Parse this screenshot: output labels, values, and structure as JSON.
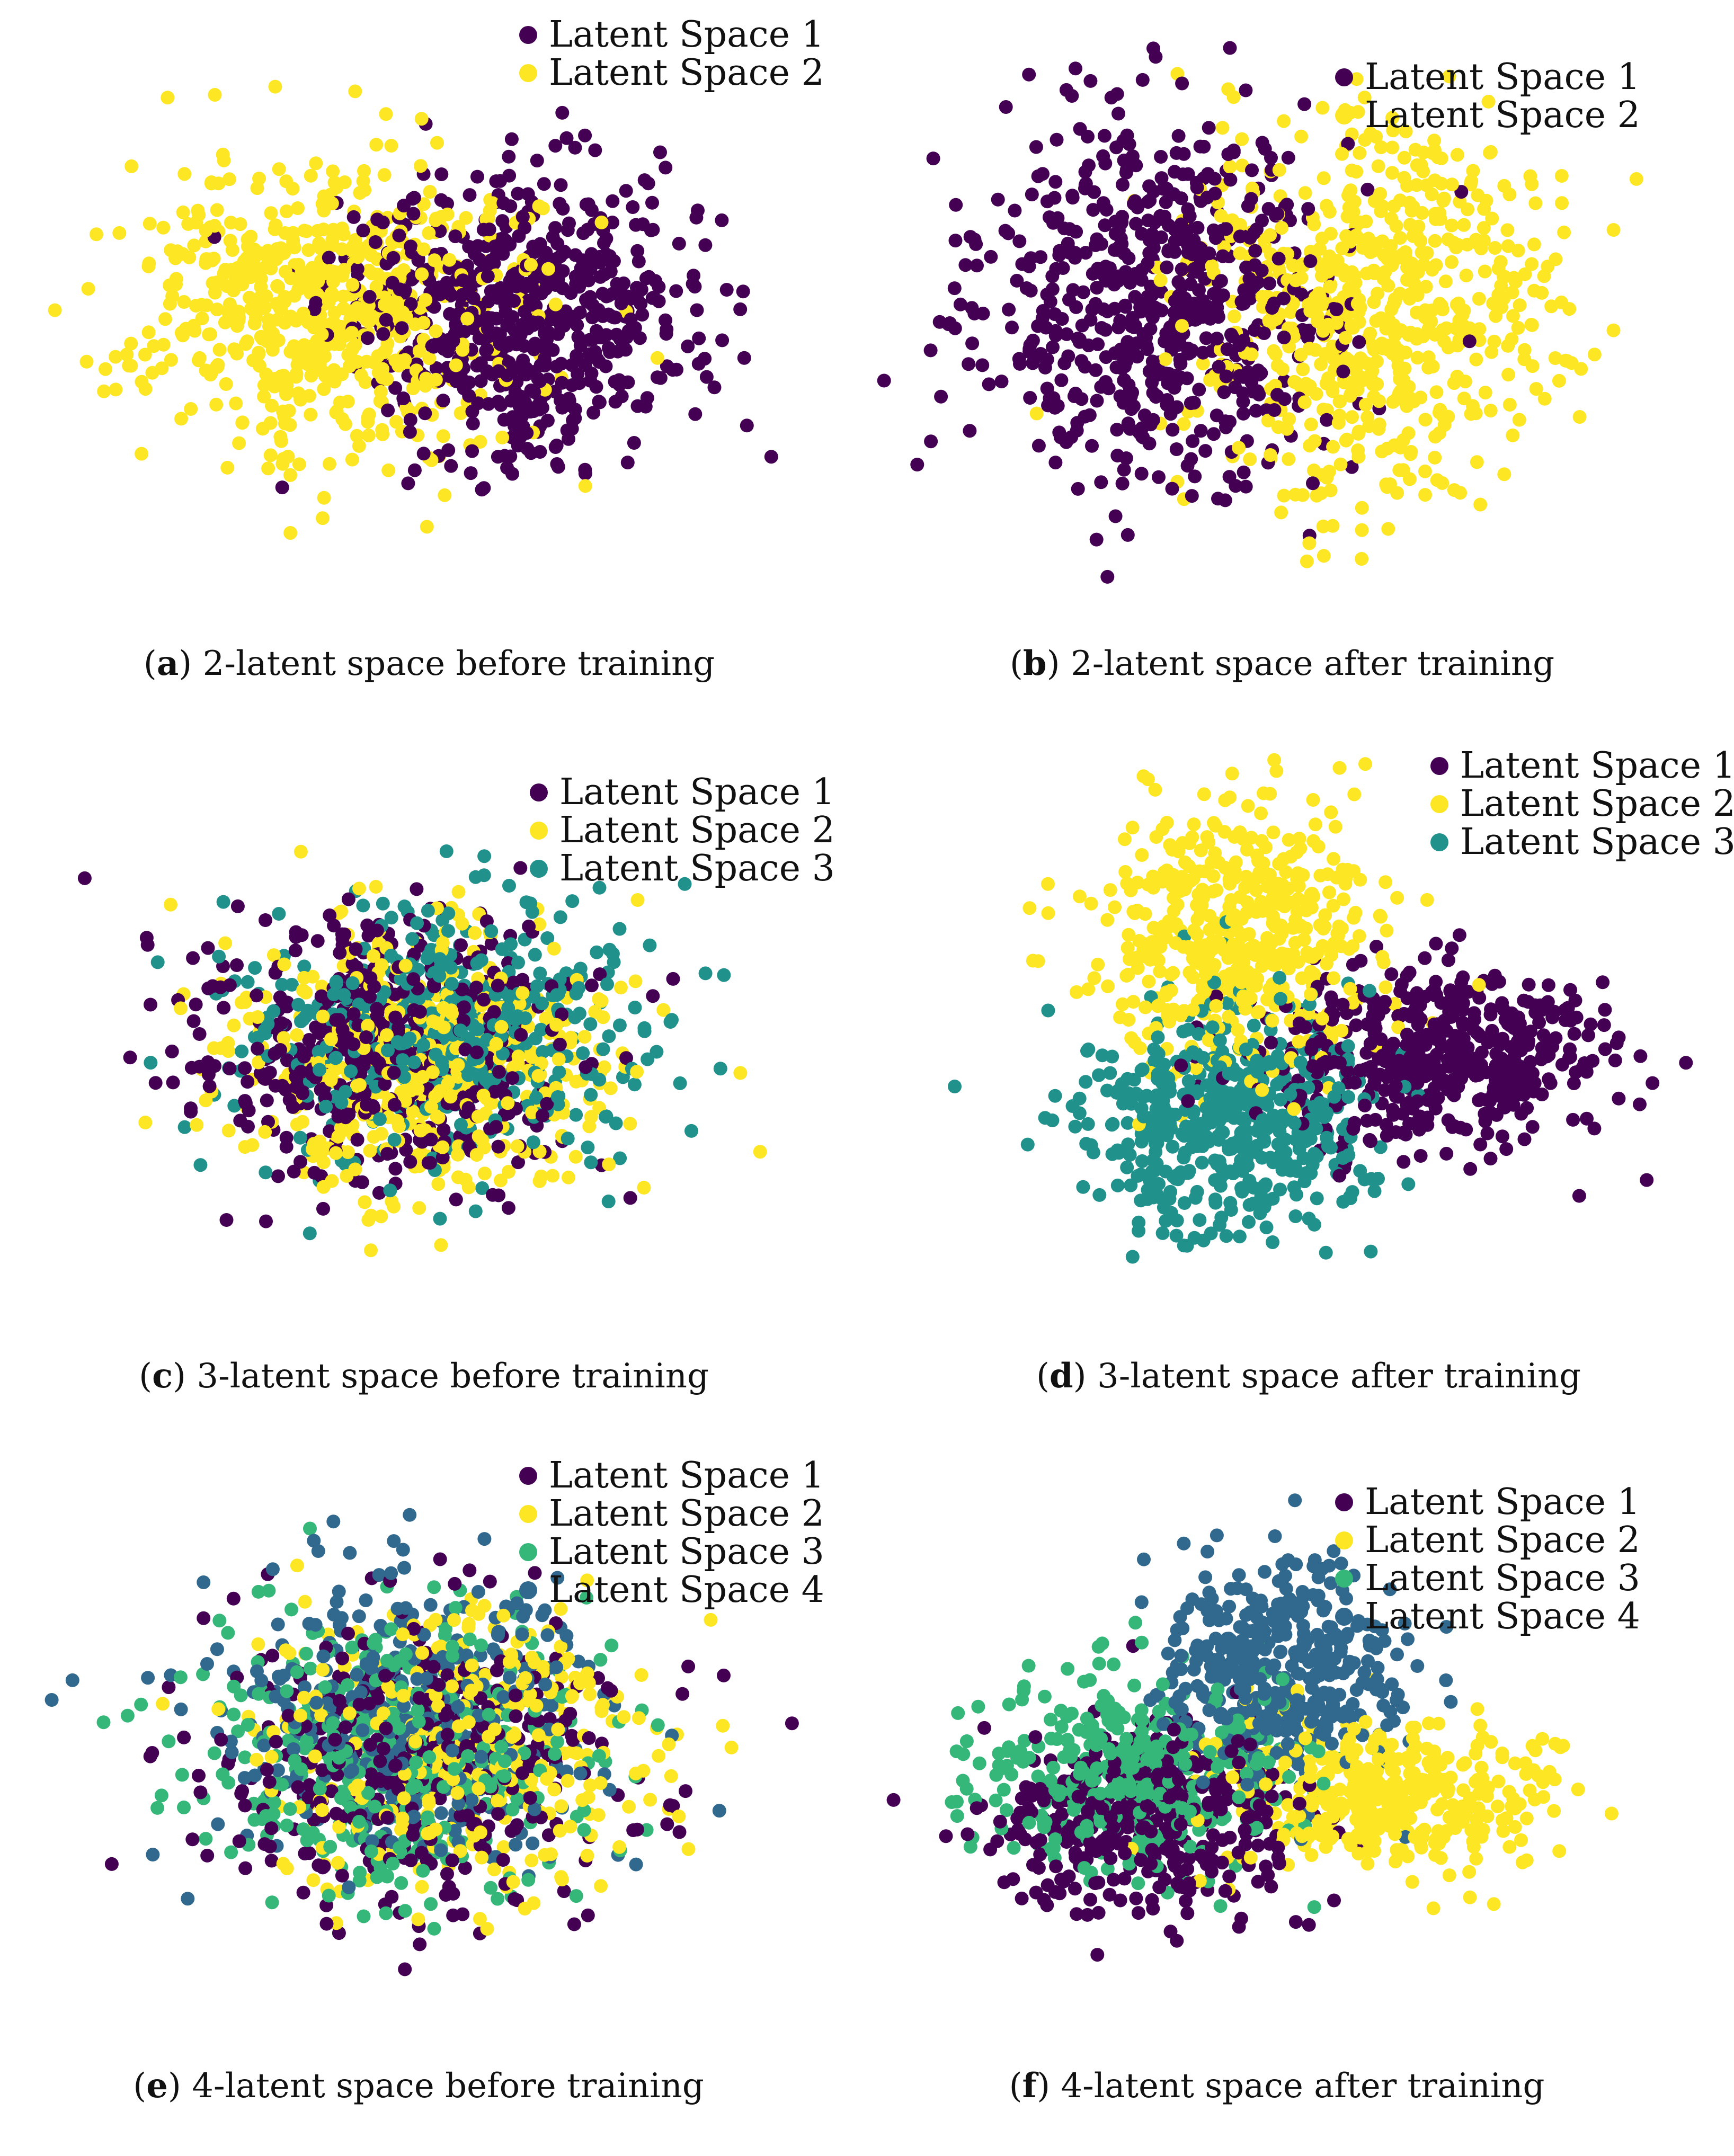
{
  "colors": {
    "latent_1": "#440154",
    "latent_2": "#fde725",
    "latent_3": "#21918c",
    "latent_4": "#31688e",
    "latent_3_f": "#35b779"
  },
  "chart_data": [
    {
      "id": "a",
      "type": "scatter",
      "caption_label": "a",
      "caption_text": "2-latent space before training",
      "title": "",
      "xlabel": "",
      "ylabel": "",
      "xlim": [
        -4,
        4
      ],
      "ylim": [
        -4,
        4
      ],
      "grid": false,
      "axes_visible": false,
      "legend": "top-right",
      "series": [
        {
          "name": "Latent Space 1",
          "color": "#440154",
          "center": [
            0.9,
            0.1
          ],
          "spread": [
            0.9,
            0.9
          ],
          "n": 650
        },
        {
          "name": "Latent Space 2",
          "color": "#fde725",
          "center": [
            -1.1,
            0.2
          ],
          "spread": [
            1.0,
            1.0
          ],
          "n": 650
        }
      ]
    },
    {
      "id": "b",
      "type": "scatter",
      "caption_label": "b",
      "caption_text": "2-latent space after training",
      "title": "",
      "xlabel": "",
      "ylabel": "",
      "xlim": [
        -4,
        4
      ],
      "ylim": [
        -4,
        4
      ],
      "grid": false,
      "axes_visible": false,
      "legend": "top-right",
      "series": [
        {
          "name": "Latent Space 1",
          "color": "#440154",
          "center": [
            -1.2,
            0.3
          ],
          "spread": [
            0.9,
            1.2
          ],
          "n": 650
        },
        {
          "name": "Latent Space 2",
          "color": "#fde725",
          "center": [
            1.0,
            0.2
          ],
          "spread": [
            0.9,
            1.2
          ],
          "n": 650
        }
      ]
    },
    {
      "id": "c",
      "type": "scatter",
      "caption_label": "c",
      "caption_text": "3-latent space before training",
      "title": "",
      "xlabel": "",
      "ylabel": "",
      "xlim": [
        -4,
        4
      ],
      "ylim": [
        -4,
        4
      ],
      "grid": false,
      "axes_visible": false,
      "legend": "top-right",
      "series": [
        {
          "name": "Latent Space 1",
          "color": "#440154",
          "center": [
            -0.4,
            0.0
          ],
          "spread": [
            1.0,
            0.9
          ],
          "n": 500
        },
        {
          "name": "Latent Space 2",
          "color": "#fde725",
          "center": [
            0.0,
            -0.2
          ],
          "spread": [
            1.0,
            0.9
          ],
          "n": 500
        },
        {
          "name": "Latent Space 3",
          "color": "#21918c",
          "center": [
            0.2,
            0.3
          ],
          "spread": [
            1.0,
            0.9
          ],
          "n": 500
        }
      ]
    },
    {
      "id": "d",
      "type": "scatter",
      "caption_label": "d",
      "caption_text": "3-latent space after training",
      "title": "",
      "xlabel": "",
      "ylabel": "",
      "xlim": [
        -4,
        4
      ],
      "ylim": [
        -4,
        4
      ],
      "grid": false,
      "axes_visible": false,
      "legend": "top-right",
      "series": [
        {
          "name": "Latent Space 1",
          "color": "#440154",
          "center": [
            1.3,
            -0.1
          ],
          "spread": [
            0.9,
            0.6
          ],
          "n": 500
        },
        {
          "name": "Latent Space 2",
          "color": "#fde725",
          "center": [
            -0.7,
            1.5
          ],
          "spread": [
            0.7,
            0.9
          ],
          "n": 500
        },
        {
          "name": "Latent Space 3",
          "color": "#21918c",
          "center": [
            -0.8,
            -1.0
          ],
          "spread": [
            0.7,
            0.8
          ],
          "n": 500
        }
      ]
    },
    {
      "id": "e",
      "type": "scatter",
      "caption_label": "e",
      "caption_text": "4-latent space before training",
      "title": "",
      "xlabel": "",
      "ylabel": "",
      "xlim": [
        -4,
        4
      ],
      "ylim": [
        -4,
        4
      ],
      "grid": false,
      "axes_visible": false,
      "legend": "top-right",
      "series": [
        {
          "name": "Latent Space 1",
          "color": "#440154",
          "center": [
            0.0,
            -0.2
          ],
          "spread": [
            1.0,
            1.0
          ],
          "n": 400
        },
        {
          "name": "Latent Space 2",
          "color": "#fde725",
          "center": [
            0.4,
            0.0
          ],
          "spread": [
            1.0,
            1.0
          ],
          "n": 400
        },
        {
          "name": "Latent Space 3",
          "color": "#35b779",
          "center": [
            -0.3,
            -0.1
          ],
          "spread": [
            1.0,
            1.0
          ],
          "n": 400
        },
        {
          "name": "Latent Space 4",
          "color": "#31688e",
          "center": [
            -0.1,
            0.4
          ],
          "spread": [
            1.0,
            1.0
          ],
          "n": 400
        }
      ]
    },
    {
      "id": "f",
      "type": "scatter",
      "caption_label": "f",
      "caption_text": "4-latent space after training",
      "title": "",
      "xlabel": "",
      "ylabel": "",
      "xlim": [
        -4,
        4
      ],
      "ylim": [
        -4,
        4
      ],
      "grid": false,
      "axes_visible": false,
      "legend": "top-right",
      "series": [
        {
          "name": "Latent Space 1",
          "color": "#440154",
          "center": [
            -1.2,
            -0.9
          ],
          "spread": [
            0.7,
            0.7
          ],
          "n": 400
        },
        {
          "name": "Latent Space 2",
          "color": "#fde725",
          "center": [
            1.0,
            -0.6
          ],
          "spread": [
            0.8,
            0.6
          ],
          "n": 400
        },
        {
          "name": "Latent Space 3",
          "color": "#35b779",
          "center": [
            -1.3,
            -0.3
          ],
          "spread": [
            0.7,
            0.7
          ],
          "n": 400
        },
        {
          "name": "Latent Space 4",
          "color": "#31688e",
          "center": [
            0.0,
            1.2
          ],
          "spread": [
            0.6,
            0.8
          ],
          "n": 400
        }
      ]
    }
  ]
}
